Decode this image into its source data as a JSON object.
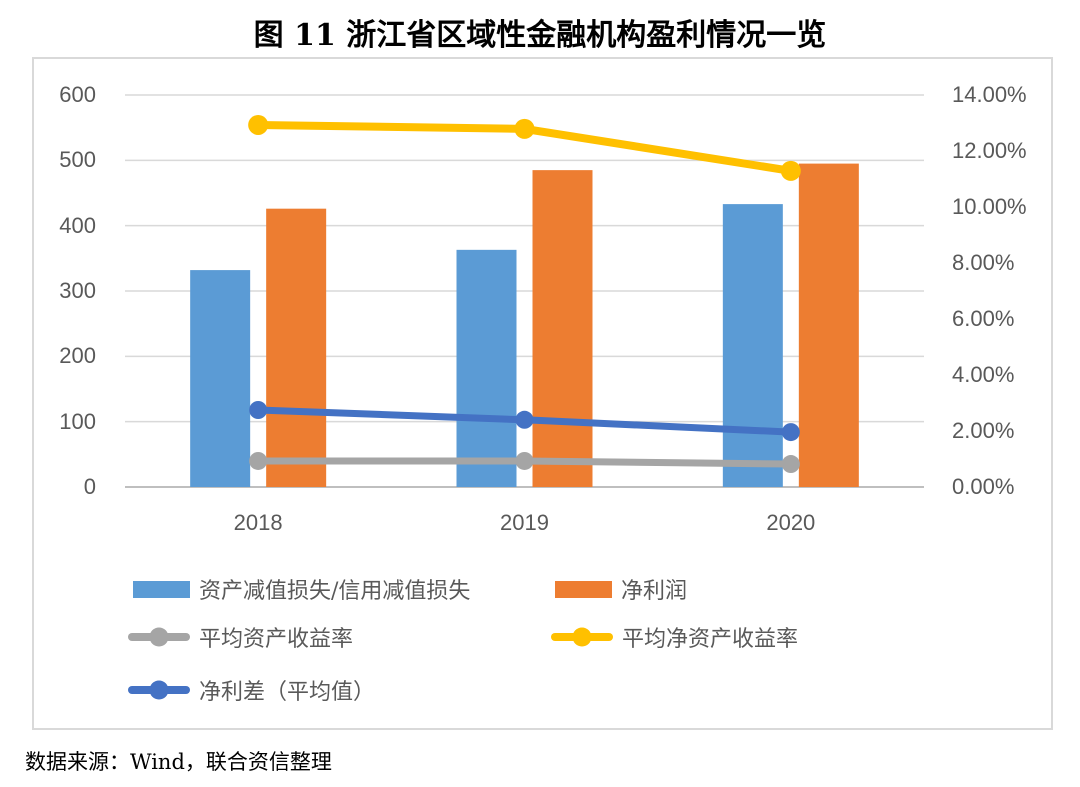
{
  "title": "图 11  浙江省区域性金融机构盈利情况一览",
  "source": "数据来源：Wind，联合资信整理",
  "colors": {
    "impairment_bar": "#5B9BD5",
    "net_profit_bar": "#ED7D31",
    "roa_line": "#A5A5A5",
    "roe_line": "#FFC000",
    "nim_line": "#4472C4",
    "gridline": "#D9D9D9",
    "baseline": "#BFBFBF",
    "axis_text": "#595959",
    "frame_border": "#D9D9D9"
  },
  "chart_data": {
    "type": "bar+line combo",
    "categories": [
      "2018",
      "2019",
      "2020"
    ],
    "series": [
      {
        "name": "资产减值损失/信用减值损失",
        "type": "bar",
        "axis": "left",
        "color": "#5B9BD5",
        "values": [
          332,
          363,
          433
        ]
      },
      {
        "name": "净利润",
        "type": "bar",
        "axis": "left",
        "color": "#ED7D31",
        "values": [
          426,
          485,
          495
        ]
      },
      {
        "name": "平均资产收益率",
        "type": "line",
        "axis": "right",
        "color": "#A5A5A5",
        "values": [
          0.93,
          0.93,
          0.82
        ]
      },
      {
        "name": "平均净资产收益率",
        "type": "line",
        "axis": "right",
        "color": "#FFC000",
        "values": [
          12.93,
          12.79,
          11.29
        ]
      },
      {
        "name": "净利差（平均值）",
        "type": "line",
        "axis": "right",
        "color": "#4472C4",
        "values": [
          2.75,
          2.4,
          1.96
        ]
      }
    ],
    "left_axis": {
      "min": 0,
      "max": 600,
      "tick_step": 100,
      "tick_labels": [
        "0",
        "100",
        "200",
        "300",
        "400",
        "500",
        "600"
      ]
    },
    "right_axis": {
      "min": 0,
      "max": 14,
      "tick_step": 2,
      "tick_labels": [
        "0.00%",
        "2.00%",
        "4.00%",
        "6.00%",
        "8.00%",
        "10.00%",
        "12.00%",
        "14.00%"
      ]
    },
    "grid": "horizontal gridlines on (left-axis intervals)",
    "legend_position": "bottom-left inside frame, 3 rows"
  },
  "legend": {
    "items": [
      {
        "series": 0,
        "swatch": "bar"
      },
      {
        "series": 1,
        "swatch": "bar"
      },
      {
        "series": 2,
        "swatch": "line"
      },
      {
        "series": 3,
        "swatch": "line"
      },
      {
        "series": 4,
        "swatch": "line"
      }
    ]
  }
}
